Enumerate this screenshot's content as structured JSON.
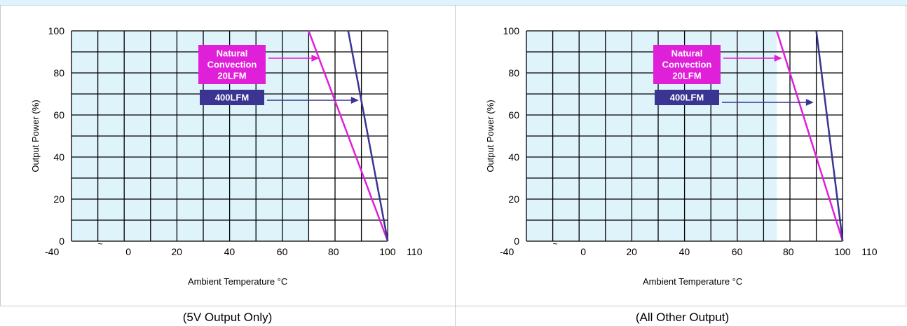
{
  "chart_data": [
    {
      "type": "line",
      "title": "",
      "caption": "(5V Output Only)",
      "xlabel": "Ambient  Temperature °C",
      "ylabel": "Output Power (%)",
      "x_tick_labels": [
        "-40",
        "~",
        "0",
        "20",
        "40",
        "60",
        "80",
        "100",
        "110"
      ],
      "y_tick_labels": [
        "0",
        "20",
        "40",
        "60",
        "80",
        "100"
      ],
      "ylim": [
        0,
        100
      ],
      "x_gridlines": [
        -40,
        -30,
        -20,
        -10,
        0,
        10,
        20,
        30,
        40,
        50,
        60,
        70,
        80,
        90,
        100,
        110
      ],
      "shaded_region": {
        "x_from": -40,
        "x_to": 70,
        "color": "#dff3fb"
      },
      "series": [
        {
          "name": "Natural Convection 20LFM",
          "color": "#e020d8",
          "x": [
            70,
            100
          ],
          "y": [
            100,
            0
          ]
        },
        {
          "name": "400LFM",
          "color": "#3a3592",
          "x": [
            85,
            100
          ],
          "y": [
            100,
            0
          ]
        }
      ],
      "annotations": [
        {
          "lines": [
            "Natural",
            "Convection",
            "20LFM"
          ],
          "bg": "#e020d8",
          "points_to_x": 74,
          "points_to_y": 87
        },
        {
          "lines": [
            "400LFM"
          ],
          "bg": "#3a3592",
          "points_to_x": 89,
          "points_to_y": 67
        }
      ]
    },
    {
      "type": "line",
      "title": "",
      "caption": "(All Other Output)",
      "xlabel": "Ambient  Temperature °C",
      "ylabel": "Output Power (%)",
      "x_tick_labels": [
        "-40",
        "~",
        "0",
        "20",
        "40",
        "60",
        "80",
        "100",
        "110"
      ],
      "y_tick_labels": [
        "0",
        "20",
        "40",
        "60",
        "80",
        "100"
      ],
      "ylim": [
        0,
        100
      ],
      "x_gridlines": [
        -40,
        -30,
        -20,
        -10,
        0,
        10,
        20,
        30,
        40,
        50,
        60,
        70,
        80,
        90,
        100,
        110
      ],
      "shaded_region": {
        "x_from": -40,
        "x_to": 75,
        "color": "#dff3fb"
      },
      "series": [
        {
          "name": "Natural Convection 20LFM",
          "color": "#e020d8",
          "x": [
            75,
            100
          ],
          "y": [
            100,
            0
          ]
        },
        {
          "name": "400LFM",
          "color": "#3a3592",
          "x": [
            90,
            100
          ],
          "y": [
            100,
            0
          ]
        }
      ],
      "annotations": [
        {
          "lines": [
            "Natural",
            "Convection",
            "20LFM"
          ],
          "bg": "#e020d8",
          "points_to_x": 77,
          "points_to_y": 87
        },
        {
          "lines": [
            "400LFM"
          ],
          "bg": "#3a3592",
          "points_to_x": 89,
          "points_to_y": 66
        }
      ]
    }
  ]
}
